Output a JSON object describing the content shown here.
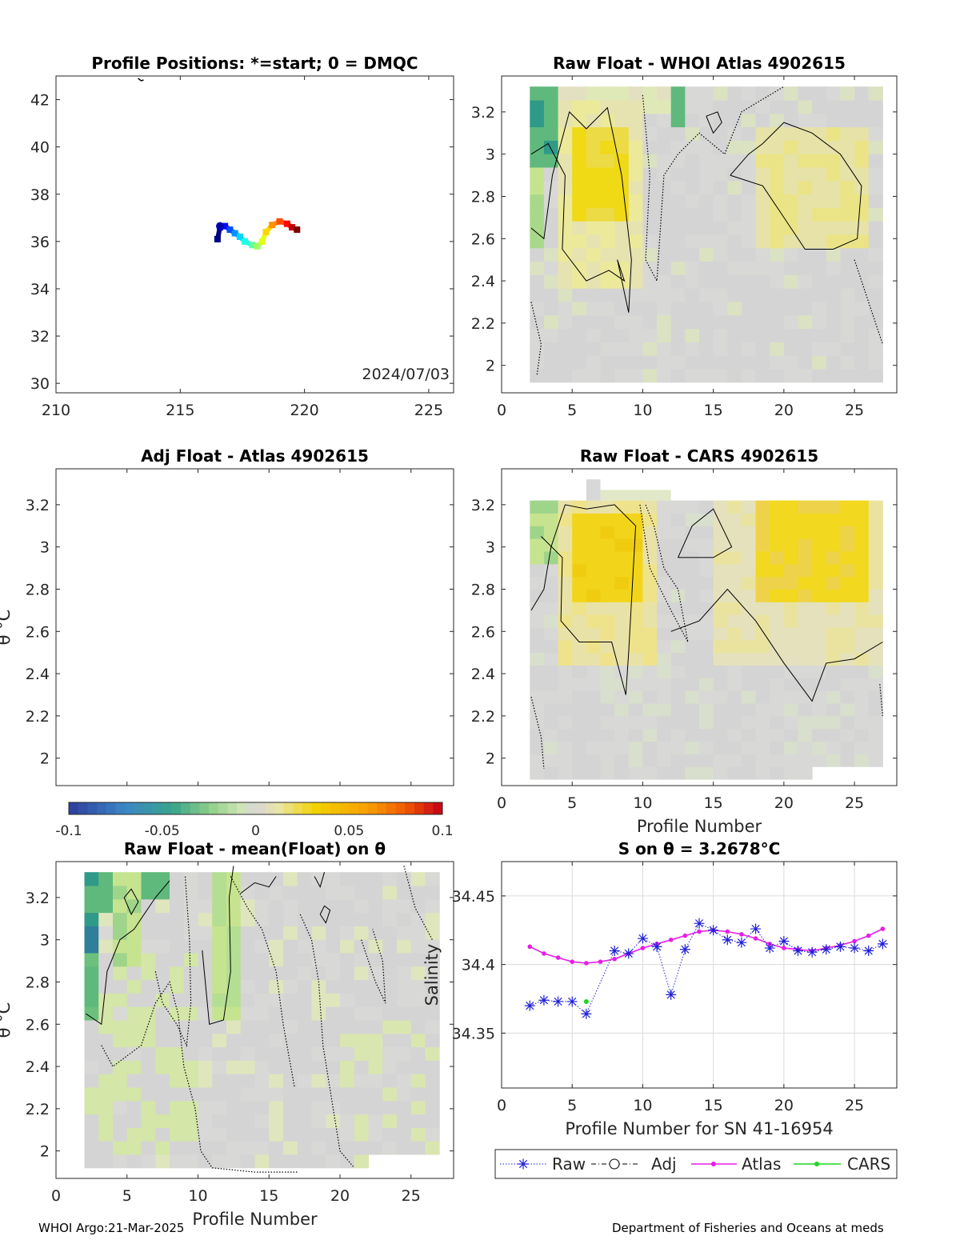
{
  "footer": {
    "left": "WHOI Argo:21-Mar-2025",
    "right": "Department of Fisheries and Oceans at meds"
  },
  "colors": {
    "grey": "#d6d6d6",
    "yellow_light": "#ece99a",
    "yellow": "#f2d200",
    "green_light": "#c6e48f",
    "green": "#5fb97c",
    "teal": "#2f9a88",
    "blue": "#3b5fb5",
    "raw": "#1f1fd8",
    "atlas": "#e61ee6",
    "cars": "#1ed61e"
  },
  "chart_data": [
    {
      "id": "positions",
      "type": "scatter",
      "title": "Profile Positions: *=start; 0 = DMQC",
      "xlim": [
        210,
        226
      ],
      "ylim": [
        29.6,
        43
      ],
      "xticks": [
        210,
        215,
        220,
        225
      ],
      "yticks": [
        30,
        32,
        34,
        36,
        38,
        40,
        42
      ],
      "annotation": "2024/07/03",
      "track": [
        [
          216.5,
          36.1
        ],
        [
          216.6,
          36.6
        ],
        [
          216.8,
          36.65
        ],
        [
          217.0,
          36.5
        ],
        [
          217.2,
          36.35
        ],
        [
          217.4,
          36.2
        ],
        [
          217.6,
          36.0
        ],
        [
          217.9,
          35.85
        ],
        [
          218.1,
          35.8
        ],
        [
          218.3,
          36.0
        ],
        [
          218.45,
          36.4
        ],
        [
          218.7,
          36.7
        ],
        [
          219.0,
          36.85
        ],
        [
          219.3,
          36.75
        ],
        [
          219.5,
          36.6
        ],
        [
          219.7,
          36.5
        ]
      ]
    },
    {
      "id": "raw_atlas",
      "type": "heatmap",
      "title": "Raw Float - WHOI Atlas  4902615",
      "xlim": [
        0,
        28
      ],
      "ylim": [
        1.87,
        3.37
      ],
      "xticks": [
        0,
        5,
        10,
        15,
        20,
        25
      ],
      "yticks": [
        2,
        2.2,
        2.4,
        2.6,
        2.8,
        3,
        3.2
      ],
      "cells_x": [
        2,
        27
      ],
      "cells_y": [
        1.92,
        3.32
      ]
    },
    {
      "id": "adj_atlas",
      "type": "heatmap",
      "title": "Adj Float - Atlas  4902615",
      "ylabel": "θ °C",
      "xlim": [
        0,
        28
      ],
      "ylim": [
        1.87,
        3.37
      ],
      "yticks": [
        2,
        2.2,
        2.4,
        2.6,
        2.8,
        3,
        3.2
      ]
    },
    {
      "id": "raw_cars",
      "type": "heatmap",
      "title": "Raw Float - CARS  4902615",
      "xlabel": "Profile Number",
      "xlim": [
        0,
        28
      ],
      "ylim": [
        1.87,
        3.37
      ],
      "xticks": [
        0,
        5,
        10,
        15,
        20,
        25
      ],
      "yticks": [
        2,
        2.2,
        2.4,
        2.6,
        2.8,
        3,
        3.2
      ],
      "cells_x": [
        2,
        27
      ],
      "cells_y": [
        1.9,
        3.22
      ]
    },
    {
      "id": "colorbar",
      "type": "heatmap",
      "range": [
        -0.1,
        0.1
      ],
      "ticks": [
        "-0.1",
        "-0.05",
        "0",
        "0.05",
        "0.1"
      ]
    },
    {
      "id": "raw_mean",
      "type": "heatmap",
      "title": "Raw Float - mean(Float) on θ",
      "xlabel": "Profile Number",
      "ylabel": "θ °C",
      "xlim": [
        0,
        28
      ],
      "ylim": [
        1.87,
        3.37
      ],
      "xticks": [
        0,
        5,
        10,
        15,
        20,
        25
      ],
      "yticks": [
        2,
        2.2,
        2.4,
        2.6,
        2.8,
        3,
        3.2
      ],
      "cells_x": [
        2,
        27
      ],
      "cells_y": [
        1.92,
        3.32
      ]
    },
    {
      "id": "salinity",
      "type": "line",
      "title": "S on θ = 3.2678°C",
      "xlabel": "Profile Number for SN 41-16954",
      "ylabel": "Salinity",
      "xlim": [
        0,
        28
      ],
      "ylim": [
        34.31,
        34.475
      ],
      "xticks": [
        0,
        5,
        10,
        15,
        20,
        25
      ],
      "yticks": [
        34.35,
        34.4,
        34.45
      ],
      "ytick_labels": [
        "34.35",
        "34.4",
        "34.45"
      ],
      "grid": true,
      "legend": [
        "Raw",
        "Adj",
        "Atlas",
        "CARS"
      ],
      "series": [
        {
          "name": "Raw",
          "marker": "star",
          "style": "dotted",
          "x": [
            2,
            3,
            4,
            5,
            6,
            8,
            9,
            10,
            11,
            12,
            13,
            14,
            15,
            16,
            17,
            18,
            19,
            20,
            21,
            22,
            23,
            24,
            25,
            26,
            27
          ],
          "y": [
            34.37,
            34.374,
            34.373,
            34.373,
            34.364,
            34.41,
            34.408,
            34.419,
            34.413,
            34.378,
            34.411,
            34.43,
            34.425,
            34.418,
            34.416,
            34.426,
            34.412,
            34.417,
            34.41,
            34.409,
            34.411,
            34.413,
            34.412,
            34.41,
            34.415
          ]
        },
        {
          "name": "Atlas",
          "marker": "dot",
          "style": "solid",
          "x": [
            2,
            3,
            4,
            5,
            6,
            7,
            8,
            9,
            10,
            11,
            12,
            13,
            14,
            15,
            16,
            17,
            18,
            19,
            20,
            21,
            22,
            23,
            24,
            25,
            26,
            27
          ],
          "y": [
            34.413,
            34.408,
            34.405,
            34.402,
            34.401,
            34.402,
            34.404,
            34.408,
            34.412,
            34.415,
            34.418,
            34.421,
            34.424,
            34.425,
            34.424,
            34.422,
            34.419,
            34.415,
            34.412,
            34.411,
            34.41,
            34.412,
            34.414,
            34.417,
            34.421,
            34.426
          ]
        },
        {
          "name": "CARS",
          "marker": "dot",
          "style": "solid",
          "x": [
            6
          ],
          "y": [
            34.373
          ]
        }
      ]
    }
  ]
}
